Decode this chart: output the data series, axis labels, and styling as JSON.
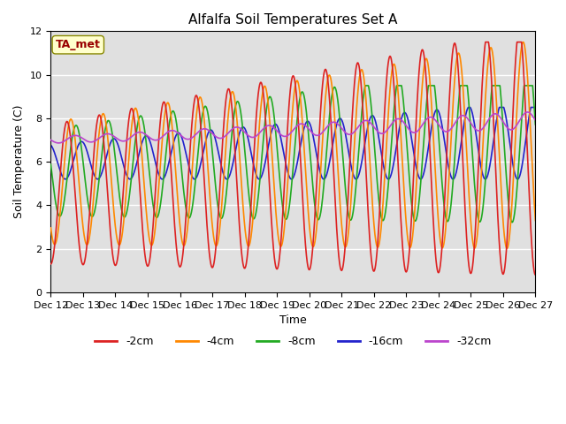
{
  "title": "Alfalfa Soil Temperatures Set A",
  "xlabel": "Time",
  "ylabel": "Soil Temperature (C)",
  "ylim": [
    0,
    12
  ],
  "xlim": [
    0,
    375
  ],
  "background_color": "#e0e0e0",
  "annotation_text": "TA_met",
  "annotation_color": "#990000",
  "annotation_bg": "#ffffcc",
  "tick_labels": [
    "Dec 12",
    "Dec 13",
    "Dec 14",
    "Dec 15",
    "Dec 16",
    "Dec 17",
    "Dec 18",
    "Dec 19",
    "Dec 20",
    "Dec 21",
    "Dec 22",
    "Dec 23",
    "Dec 24",
    "Dec 25",
    "Dec 26",
    "Dec 27"
  ],
  "tick_positions": [
    0,
    25,
    50,
    75,
    100,
    125,
    150,
    175,
    200,
    225,
    250,
    275,
    300,
    325,
    350,
    375
  ],
  "series": {
    "-2cm": {
      "color": "#dd2222",
      "lw": 1.2
    },
    "-4cm": {
      "color": "#ff8800",
      "lw": 1.2
    },
    "-8cm": {
      "color": "#22aa22",
      "lw": 1.2
    },
    "-16cm": {
      "color": "#2222cc",
      "lw": 1.2
    },
    "-32cm": {
      "color": "#bb44cc",
      "lw": 1.2
    }
  },
  "legend_order": [
    "-2cm",
    "-4cm",
    "-8cm",
    "-16cm",
    "-32cm"
  ]
}
